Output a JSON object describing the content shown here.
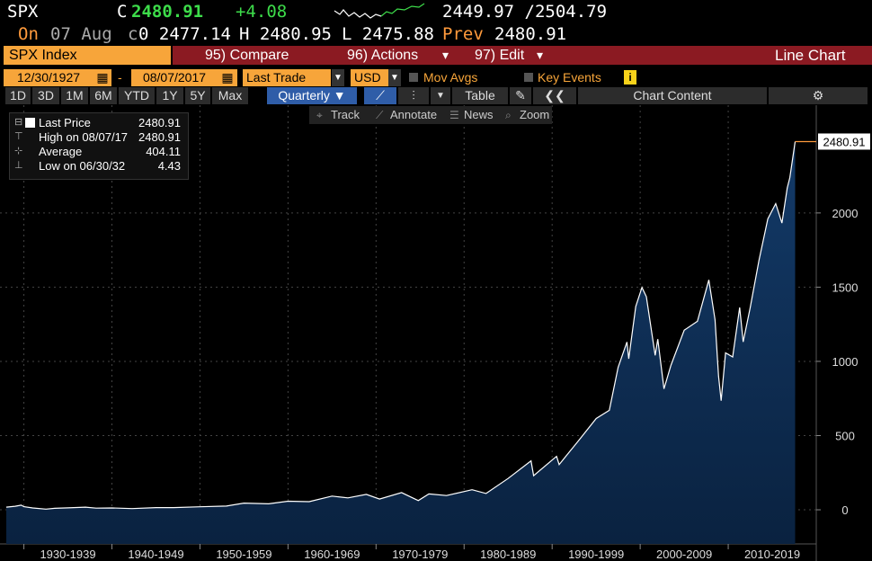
{
  "header": {
    "ticker": "SPX",
    "flag": "C",
    "price": "2480.91",
    "change": "+4.08",
    "range": "2449.97 /2504.79",
    "on_label": "On",
    "date": "07 Aug",
    "c_marker": "c",
    "open": "0 2477.14",
    "high": "H 2480.95",
    "low": "L 2475.88",
    "prev_label": "Prev",
    "prev": "2480.91"
  },
  "toolbar": {
    "security": "SPX Index",
    "compare": "95) Compare",
    "actions": "96) Actions",
    "edit": "97) Edit",
    "chart_type": "Line Chart",
    "start_date": "12/30/1927",
    "dash": "-",
    "end_date": "08/07/2017",
    "field": "Last Trade",
    "currency": "USD",
    "mov_avgs": "Mov Avgs",
    "key_events": "Key Events",
    "periods": [
      "1D",
      "3D",
      "1M",
      "6M",
      "YTD",
      "1Y",
      "5Y",
      "Max"
    ],
    "frequency": "Quarterly ▼",
    "table": "Table",
    "chart_content": "Chart Content"
  },
  "chart_tools": [
    "Track",
    "Annotate",
    "News",
    "Zoom"
  ],
  "legend": {
    "rows": [
      {
        "label": "Last Price",
        "value": "2480.91"
      },
      {
        "label": "High on 08/07/17",
        "value": "2480.91"
      },
      {
        "label": "Average",
        "value": "404.11"
      },
      {
        "label": "Low on 06/30/32",
        "value": "4.43"
      }
    ]
  },
  "chart_data": {
    "type": "area",
    "x": [
      1928.0,
      1929.0,
      1929.7,
      1930.0,
      1931.0,
      1932.5,
      1933.5,
      1935.0,
      1937.0,
      1938.2,
      1940.0,
      1942.3,
      1945.0,
      1947.0,
      1950.0,
      1953.0,
      1955.0,
      1957.8,
      1960.0,
      1962.4,
      1965.0,
      1966.8,
      1968.9,
      1970.4,
      1972.9,
      1974.8,
      1976.0,
      1978.0,
      1980.9,
      1982.5,
      1985.0,
      1987.6,
      1987.9,
      1990.5,
      1990.8,
      1993.0,
      1995.0,
      1996.5,
      1997.5,
      1998.5,
      1998.7,
      1999.5,
      2000.2,
      2000.7,
      2001.7,
      2002.0,
      2002.7,
      2003.5,
      2005.0,
      2006.5,
      2007.8,
      2008.5,
      2008.9,
      2009.2,
      2009.7,
      2010.5,
      2011.3,
      2011.7,
      2012.5,
      2013.5,
      2014.5,
      2015.4,
      2016.1,
      2016.7,
      2017.0,
      2017.6
    ],
    "series": [
      {
        "name": "Last Price",
        "color": "#ffffff",
        "values": [
          17.7,
          24,
          31,
          21,
          12,
          4.43,
          10,
          13,
          18,
          11,
          12,
          8,
          15,
          15,
          20,
          25,
          45,
          40,
          58,
          55,
          92,
          80,
          104,
          72,
          116,
          62,
          107,
          96,
          135,
          110,
          211,
          330,
          230,
          360,
          305,
          466,
          615,
          670,
          960,
          1130,
          1017,
          1370,
          1498,
          1436,
          1040,
          1150,
          815,
          975,
          1210,
          1270,
          1549,
          1280,
          900,
          735,
          1057,
          1030,
          1363,
          1131,
          1362,
          1681,
          1960,
          2063,
          1932,
          2168,
          2238,
          2480.91
        ]
      }
    ],
    "area_color": "#12345a",
    "last_color": "#ff9a3c",
    "xlim": [
      1927.9,
      2020.0
    ],
    "xticks": [
      {
        "value": 1930,
        "label": "1930-1939"
      },
      {
        "value": 1940,
        "label": "1940-1949"
      },
      {
        "value": 1950,
        "label": "1950-1959"
      },
      {
        "value": 1960,
        "label": "1960-1969"
      },
      {
        "value": 1970,
        "label": "1970-1979"
      },
      {
        "value": 1980,
        "label": "1980-1989"
      },
      {
        "value": 1990,
        "label": "1990-1999"
      },
      {
        "value": 2000,
        "label": "2000-2009"
      },
      {
        "value": 2010,
        "label": "2010-2019"
      }
    ],
    "ylim": [
      -230,
      2720
    ],
    "yticks": [
      0,
      500,
      1000,
      1500,
      2000
    ],
    "grid": true
  }
}
